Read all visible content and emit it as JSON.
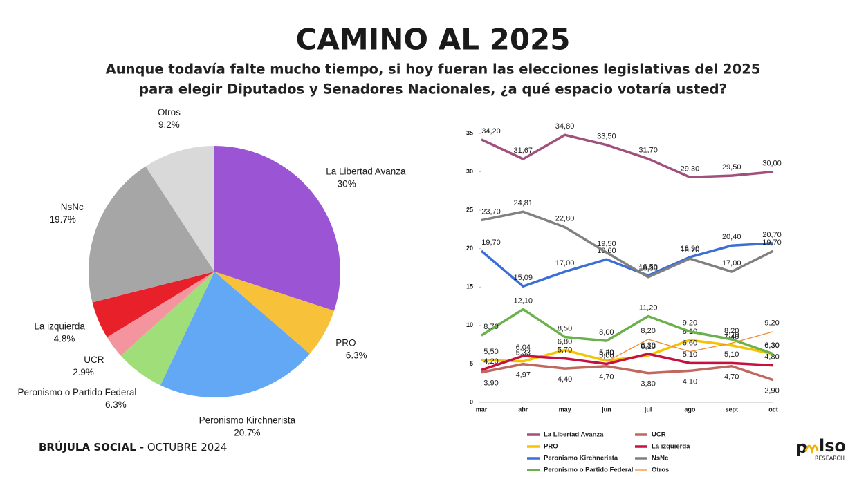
{
  "title": "CAMINO AL 2025",
  "subtitle": [
    "Aunque todavía falte mucho tiempo, si hoy fueran las elecciones legislativas del 2025",
    "para elegir Diputados y Senadores Nacionales, ¿a qué espacio votaría usted?"
  ],
  "footer": {
    "bold": "BRÚJULA SOCIAL -",
    "text": "OCTUBRE 2024"
  },
  "logo": {
    "mark": "p",
    "text": "lso",
    "sub": "RESEARCH"
  },
  "chart_data": [
    {
      "type": "pie",
      "categories": [
        "La Libertad Avanza",
        "PRO",
        "Peronismo Kirchnerista",
        "Peronismo o Partido Federal",
        "UCR",
        "La izquierda",
        "NsNc",
        "Otros"
      ],
      "values": [
        30,
        6.3,
        20.7,
        6.3,
        2.9,
        4.8,
        19.7,
        9.2
      ],
      "value_labels": [
        "30%",
        "6.3%",
        "20.7%",
        "6.3%",
        "2.9%",
        "4.8%",
        "19.7%",
        "9.2%"
      ],
      "colors": [
        "#9b55d4",
        "#f7c23a",
        "#63a8f5",
        "#a0de7a",
        "#f3949e",
        "#e8202a",
        "#a6a6a6",
        "#d9d9d9"
      ]
    },
    {
      "type": "line",
      "categories": [
        "mar",
        "abr",
        "may",
        "jun",
        "jul",
        "ago",
        "sept",
        "oct"
      ],
      "ylim": [
        0,
        35
      ],
      "yticks": [
        0,
        5,
        10,
        15,
        20,
        25,
        30,
        35
      ],
      "series": [
        {
          "name": "La Libertad Avanza",
          "color": "#a0507a",
          "values": [
            34.2,
            31.67,
            34.8,
            33.5,
            31.7,
            29.3,
            29.5,
            30.0
          ],
          "value_labels": [
            "34,20",
            "31,67",
            "34,80",
            "33,50",
            "31,70",
            "29,30",
            "29,50",
            "30,00"
          ]
        },
        {
          "name": "UCR",
          "color": "#c0675e",
          "values": [
            3.9,
            4.97,
            4.4,
            4.7,
            3.8,
            4.1,
            4.7,
            2.9
          ],
          "value_labels": [
            "3,90",
            "4,97",
            "4,40",
            "4,70",
            "3,80",
            "4,10",
            "4,70",
            "2,90"
          ]
        },
        {
          "name": "PRO",
          "color": "#f5c400",
          "values": [
            5.5,
            5.33,
            6.8,
            5.4,
            6.1,
            8.1,
            7.4,
            6.3
          ],
          "value_labels": [
            "5,50",
            "5,33",
            "6,80",
            "5,40",
            "6,10",
            "8,10",
            "7,40",
            "6,30"
          ]
        },
        {
          "name": "La izquierda",
          "color": "#c8103e",
          "values": [
            4.2,
            6.04,
            5.7,
            5.0,
            6.3,
            5.1,
            5.1,
            4.8
          ],
          "value_labels": [
            "4,20",
            "6,04",
            "5,70",
            "5,00",
            "6,30",
            "5,10",
            "5,10",
            "4,80"
          ]
        },
        {
          "name": "Peronismo Kirchnerista",
          "color": "#3b6fd6",
          "values": [
            19.7,
            15.09,
            17.0,
            18.6,
            16.5,
            18.9,
            20.4,
            20.7
          ],
          "value_labels": [
            "19,70",
            "15,09",
            "17,00",
            "18,60",
            "16,50",
            "18,90",
            "20,40",
            "20,70"
          ]
        },
        {
          "name": "NsNc",
          "color": "#808080",
          "values": [
            23.7,
            24.81,
            22.8,
            19.5,
            16.3,
            18.7,
            17.0,
            19.7
          ],
          "value_labels": [
            "23,70",
            "24,81",
            "22,80",
            "19,50",
            "16,30",
            "18,70",
            "17,00",
            "19,70"
          ]
        },
        {
          "name": "Peronismo o Partido Federal",
          "color": "#6ab04c",
          "values": [
            8.7,
            12.1,
            8.5,
            8.0,
            11.2,
            9.2,
            8.2,
            6.3
          ],
          "value_labels": [
            "8,70",
            "12,10",
            "8,50",
            "8,00",
            "11,20",
            "9,20",
            "8,20",
            "6,30"
          ]
        },
        {
          "name": "Otros",
          "color": "#f08a30",
          "values": [
            null,
            null,
            null,
            5.3,
            8.2,
            6.6,
            7.7,
            9.2
          ],
          "value_labels": [
            null,
            null,
            null,
            "5,30",
            "8,20",
            "6,60",
            "7,70",
            "9,20"
          ]
        }
      ]
    }
  ]
}
